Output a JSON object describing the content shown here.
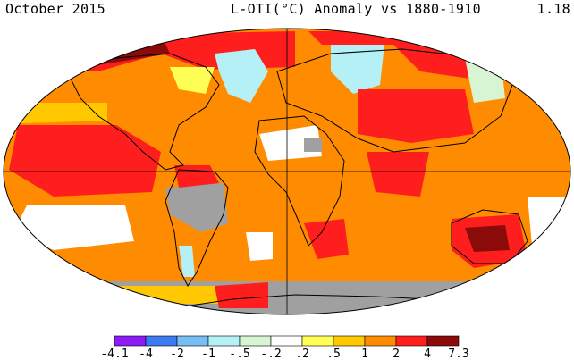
{
  "header": {
    "left": "October 2015",
    "center": "L-OTI(°C) Anomaly vs 1880-1910",
    "right": "1.18"
  },
  "legend": {
    "colors": [
      "#8b1cf5",
      "#3c7cf0",
      "#78bdf5",
      "#b4f0f5",
      "#d7f5d2",
      "#ffffff",
      "#ffff55",
      "#ffc800",
      "#ff8c00",
      "#ff1e1e",
      "#8b0a0a"
    ],
    "ticks": [
      "-4.1",
      "-4",
      "-2",
      "-1",
      "-.5",
      "-.2",
      ".2",
      ".5",
      "1",
      "2",
      "4",
      "7.3"
    ]
  },
  "map": {
    "projection": "robinson",
    "ocean_color": "#ff8c00",
    "missing_color": "#a0a0a0",
    "coastline_color": "#000000"
  }
}
